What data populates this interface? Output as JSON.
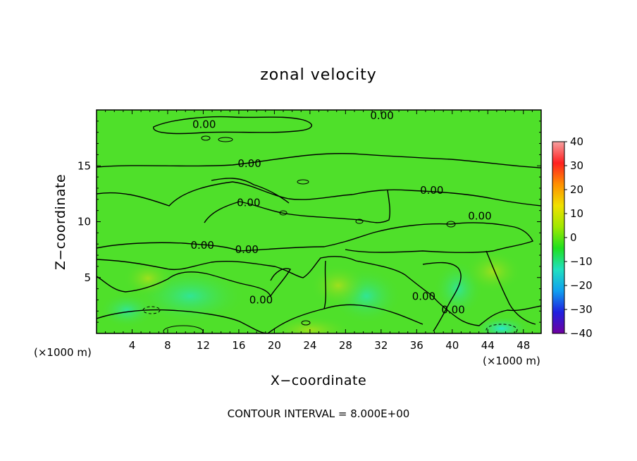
{
  "chart_data": {
    "type": "heatmap",
    "title": "zonal velocity",
    "xlabel": "X−coordinate",
    "ylabel": "Z−coordinate",
    "x_unit_left": "(×1000 m)",
    "x_unit_right": "(×1000 m)",
    "xlim": [
      0,
      50
    ],
    "ylim": [
      0,
      20
    ],
    "x_ticks": [
      4,
      8,
      12,
      16,
      20,
      24,
      28,
      32,
      36,
      40,
      44,
      48
    ],
    "y_ticks": [
      5,
      10,
      15
    ],
    "colorbar": {
      "min": -40,
      "max": 40,
      "ticks": [
        "40",
        "30",
        "20",
        "10",
        "0",
        "−10",
        "−20",
        "−30",
        "−40"
      ],
      "colors": [
        "#f6a0a0",
        "#ff2020",
        "#ff9000",
        "#f0e000",
        "#a0e800",
        "#20e020",
        "#20e0c0",
        "#10a0f0",
        "#2020e0",
        "#7000a0"
      ]
    },
    "field_color": "#4fe02a",
    "contour_labels": [
      {
        "text": "0.00",
        "x": 32.1,
        "z": 19.5
      },
      {
        "text": "0.00",
        "x": 12.1,
        "z": 18.7
      },
      {
        "text": "0.00",
        "x": 17.2,
        "z": 15.2
      },
      {
        "text": "0.00",
        "x": 37.7,
        "z": 12.8
      },
      {
        "text": "0.00",
        "x": 17.1,
        "z": 11.7
      },
      {
        "text": "0.00",
        "x": 43.1,
        "z": 10.5
      },
      {
        "text": "0.00",
        "x": 11.9,
        "z": 7.9
      },
      {
        "text": "0.00",
        "x": 16.9,
        "z": 7.5
      },
      {
        "text": "0.00",
        "x": 18.5,
        "z": 3.0
      },
      {
        "text": "0.00",
        "x": 36.8,
        "z": 3.3
      },
      {
        "text": "0.00",
        "x": 40.1,
        "z": 2.1
      }
    ],
    "contour_interval": "CONTOUR INTERVAL = 8.000E+00",
    "legend": "right"
  }
}
